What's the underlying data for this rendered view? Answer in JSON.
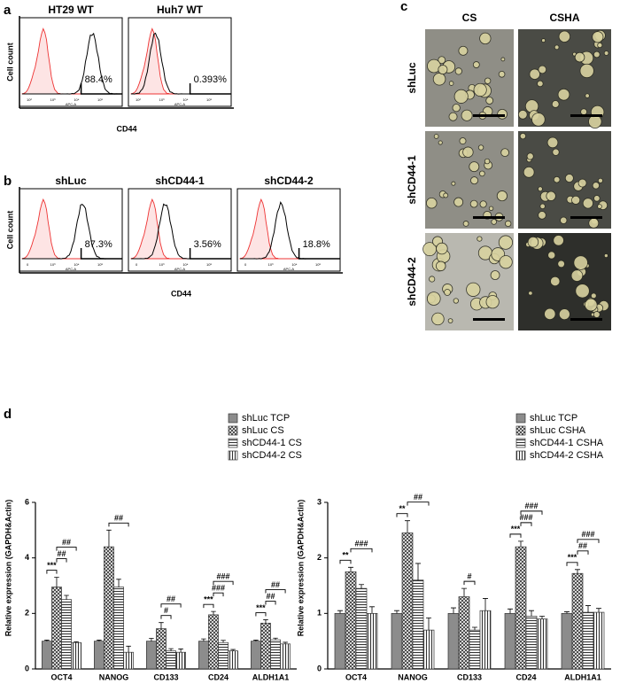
{
  "panel_a": {
    "label": "a",
    "plots": [
      {
        "title": "HT29 WT",
        "percent": "88.4%"
      },
      {
        "title": "Huh7 WT",
        "percent": "0.393%"
      }
    ],
    "y_label": "Cell count",
    "x_label": "CD44",
    "axis_label": "APC-A",
    "axis_ticks": [
      "10²",
      "10³",
      "10⁴",
      "10⁵"
    ]
  },
  "panel_b": {
    "label": "b",
    "plots": [
      {
        "title": "shLuc",
        "percent": "87.3%"
      },
      {
        "title": "shCD44-1",
        "percent": "3.56%"
      },
      {
        "title": "shCD44-2",
        "percent": "18.8%"
      }
    ],
    "y_label": "Cell count",
    "x_label": "CD44",
    "axis_label": "APC-A",
    "axis_ticks": [
      "0",
      "10³",
      "10⁴",
      "10⁵"
    ]
  },
  "panel_c": {
    "label": "c",
    "columns": [
      "CS",
      "CSHA"
    ],
    "rows": [
      "shLuc",
      "shCD44-1",
      "shCD44-2"
    ]
  },
  "panel_d": {
    "label": "d"
  },
  "chart_data": [
    {
      "type": "bar",
      "y_label": "Relative expression (GAPDH&Actin)",
      "categories": [
        "OCT4",
        "NANOG",
        "CD133",
        "CD24",
        "ALDH1A1"
      ],
      "ylim": [
        0,
        6
      ],
      "yticks": [
        0,
        2,
        4,
        6
      ],
      "series": [
        {
          "name": "shLuc TCP",
          "pattern": "solid",
          "color": "#8c8c8c",
          "values": [
            1,
            1,
            1,
            1,
            1
          ],
          "errors": [
            0.04,
            0.04,
            0.1,
            0.08,
            0.04
          ]
        },
        {
          "name": "shLuc CS",
          "pattern": "crosshatch",
          "color": "#444444",
          "values": [
            2.95,
            4.4,
            1.45,
            1.95,
            1.65
          ],
          "errors": [
            0.35,
            0.6,
            0.22,
            0.12,
            0.12
          ]
        },
        {
          "name": "shCD44-1 CS",
          "pattern": "hstripe",
          "color": "#444444",
          "values": [
            2.5,
            2.95,
            0.65,
            0.95,
            1.05
          ],
          "errors": [
            0.15,
            0.28,
            0.08,
            0.08,
            0.06
          ]
        },
        {
          "name": "shCD44-2 CS",
          "pattern": "vstripe",
          "color": "#444444",
          "values": [
            0.95,
            0.6,
            0.6,
            0.65,
            0.9
          ],
          "errors": [
            0.03,
            0.22,
            0.12,
            0.05,
            0.06
          ]
        }
      ],
      "annotations": [
        {
          "text": "***",
          "category": 0,
          "from": 0,
          "to": 1
        },
        {
          "text": "##",
          "category": 0,
          "from": 1,
          "to": 2
        },
        {
          "text": "##",
          "category": 0,
          "from": 1,
          "to": 3
        },
        {
          "text": "##",
          "category": 1,
          "from": 1,
          "to": 3
        },
        {
          "text": "#",
          "category": 2,
          "from": 1,
          "to": 2
        },
        {
          "text": "##",
          "category": 2,
          "from": 1,
          "to": 3
        },
        {
          "text": "***",
          "category": 3,
          "from": 0,
          "to": 1
        },
        {
          "text": "###",
          "category": 3,
          "from": 1,
          "to": 2
        },
        {
          "text": "###",
          "category": 3,
          "from": 1,
          "to": 3
        },
        {
          "text": "***",
          "category": 4,
          "from": 0,
          "to": 1
        },
        {
          "text": "##",
          "category": 4,
          "from": 1,
          "to": 2
        },
        {
          "text": "##",
          "category": 4,
          "from": 1,
          "to": 3
        }
      ]
    },
    {
      "type": "bar",
      "y_label": "Relative expression (GAPDH&Actin)",
      "categories": [
        "OCT4",
        "NANOG",
        "CD133",
        "CD24",
        "ALDH1A1"
      ],
      "ylim": [
        0,
        3
      ],
      "yticks": [
        0,
        1,
        2,
        3
      ],
      "series": [
        {
          "name": "shLuc TCP",
          "pattern": "solid",
          "color": "#8c8c8c",
          "values": [
            1,
            1,
            1,
            1,
            1
          ],
          "errors": [
            0.05,
            0.05,
            0.1,
            0.08,
            0.03
          ]
        },
        {
          "name": "shLuc CSHA",
          "pattern": "crosshatch",
          "color": "#444444",
          "values": [
            1.75,
            2.45,
            1.3,
            2.2,
            1.72
          ],
          "errors": [
            0.08,
            0.22,
            0.15,
            0.1,
            0.07
          ]
        },
        {
          "name": "shCD44-1 CSHA",
          "pattern": "hstripe",
          "color": "#444444",
          "values": [
            1.45,
            1.6,
            0.7,
            0.95,
            1.02
          ],
          "errors": [
            0.07,
            0.3,
            0.05,
            0.1,
            0.12
          ]
        },
        {
          "name": "shCD44-2 CSHA",
          "pattern": "vstripe",
          "color": "#444444",
          "values": [
            1.0,
            0.7,
            1.05,
            0.9,
            1.02
          ],
          "errors": [
            0.12,
            0.22,
            0.22,
            0.05,
            0.07
          ]
        }
      ],
      "annotations": [
        {
          "text": "**",
          "category": 0,
          "from": 0,
          "to": 1
        },
        {
          "text": "###",
          "category": 0,
          "from": 1,
          "to": 3
        },
        {
          "text": "**",
          "category": 1,
          "from": 0,
          "to": 1
        },
        {
          "text": "##",
          "category": 1,
          "from": 1,
          "to": 3
        },
        {
          "text": "#",
          "category": 2,
          "from": 1,
          "to": 2
        },
        {
          "text": "***",
          "category": 3,
          "from": 0,
          "to": 1
        },
        {
          "text": "###",
          "category": 3,
          "from": 1,
          "to": 2
        },
        {
          "text": "###",
          "category": 3,
          "from": 1,
          "to": 3
        },
        {
          "text": "***",
          "category": 4,
          "from": 0,
          "to": 1
        },
        {
          "text": "##",
          "category": 4,
          "from": 1,
          "to": 2
        },
        {
          "text": "###",
          "category": 4,
          "from": 1,
          "to": 3
        }
      ]
    }
  ]
}
